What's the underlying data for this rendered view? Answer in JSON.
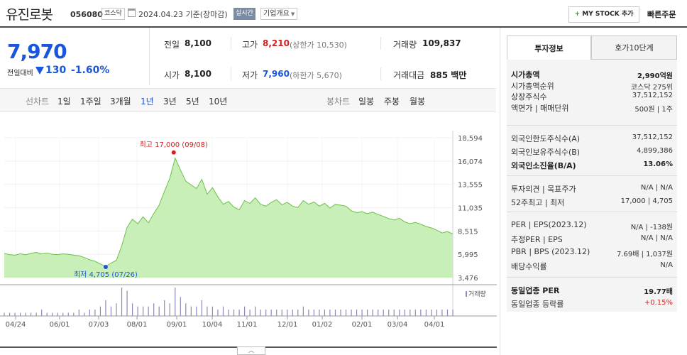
{
  "header": {
    "name": "유진로봇",
    "code": "056080",
    "market": "코스닥",
    "date": "2024.04.23 기준(장마감)",
    "live_label": "실시간",
    "info_label": "기업개요",
    "mystock_label": "MY STOCK 추가",
    "quick_order_label": "빠른주문"
  },
  "price": {
    "current": "7,970",
    "change_label": "전일대비",
    "change": "130",
    "change_rate": "-1.60%",
    "direction": "down"
  },
  "quotes": {
    "prev_label": "전일",
    "prev": "8,100",
    "high_label": "고가",
    "high": "8,210",
    "upper_limit": "(상한가 10,530)",
    "volume_label": "거래량",
    "volume": "109,837",
    "open_label": "시가",
    "open": "8,100",
    "low_label": "저가",
    "low": "7,960",
    "lower_limit": "(하한가 5,670)",
    "amount_label": "거래대금",
    "amount": "885 백만"
  },
  "line_tabs": {
    "label": "선차트",
    "items": [
      "1일",
      "1주일",
      "3개월",
      "1년",
      "3년",
      "5년",
      "10년"
    ],
    "active": "1년"
  },
  "candle_tabs": {
    "label": "봉차트",
    "items": [
      "일봉",
      "주봉",
      "월봉"
    ]
  },
  "chart_data": {
    "type": "area",
    "y_ticks": [
      "18,594",
      "16,074",
      "13,555",
      "11,035",
      "8,515",
      "5,995",
      "3,476"
    ],
    "ylim": [
      3476,
      18594
    ],
    "x_ticks": [
      "04/24",
      "06/01",
      "07/03",
      "08/01",
      "09/01",
      "10/04",
      "11/01",
      "12/01",
      "01/02",
      "02/01",
      "03/04",
      "04/01"
    ],
    "high_annotation": "최고 17,000 (09/08)",
    "low_annotation": "최저 4,705 (07/26)",
    "high_value": 17000,
    "low_value": 4705,
    "volume_legend": "거래량",
    "area_color": "#aee39e",
    "line_color": "#6cc04a",
    "price_series": [
      {
        "x": 0,
        "y": 6100
      },
      {
        "x": 1,
        "y": 5950
      },
      {
        "x": 2,
        "y": 5900
      },
      {
        "x": 3,
        "y": 6050
      },
      {
        "x": 4,
        "y": 5950
      },
      {
        "x": 5,
        "y": 6100
      },
      {
        "x": 6,
        "y": 6200
      },
      {
        "x": 7,
        "y": 6050
      },
      {
        "x": 8,
        "y": 6150
      },
      {
        "x": 9,
        "y": 6000
      },
      {
        "x": 10,
        "y": 5950
      },
      {
        "x": 11,
        "y": 6050
      },
      {
        "x": 12,
        "y": 6000
      },
      {
        "x": 13,
        "y": 5900
      },
      {
        "x": 14,
        "y": 5850
      },
      {
        "x": 15,
        "y": 5650
      },
      {
        "x": 16,
        "y": 5400
      },
      {
        "x": 17,
        "y": 5250
      },
      {
        "x": 18,
        "y": 4950
      },
      {
        "x": 19,
        "y": 4705
      },
      {
        "x": 20,
        "y": 5050
      },
      {
        "x": 21,
        "y": 5350
      },
      {
        "x": 22,
        "y": 6900
      },
      {
        "x": 23,
        "y": 8900
      },
      {
        "x": 24,
        "y": 9800
      },
      {
        "x": 25,
        "y": 9300
      },
      {
        "x": 26,
        "y": 10050
      },
      {
        "x": 27,
        "y": 9400
      },
      {
        "x": 28,
        "y": 10400
      },
      {
        "x": 29,
        "y": 11300
      },
      {
        "x": 30,
        "y": 12800
      },
      {
        "x": 31,
        "y": 14200
      },
      {
        "x": 32,
        "y": 16400
      },
      {
        "x": 33,
        "y": 15100
      },
      {
        "x": 34,
        "y": 13900
      },
      {
        "x": 35,
        "y": 13500
      },
      {
        "x": 36,
        "y": 13100
      },
      {
        "x": 37,
        "y": 14100
      },
      {
        "x": 38,
        "y": 12500
      },
      {
        "x": 39,
        "y": 13200
      },
      {
        "x": 40,
        "y": 12200
      },
      {
        "x": 41,
        "y": 11400
      },
      {
        "x": 42,
        "y": 11700
      },
      {
        "x": 43,
        "y": 11100
      },
      {
        "x": 44,
        "y": 10800
      },
      {
        "x": 45,
        "y": 11800
      },
      {
        "x": 46,
        "y": 11500
      },
      {
        "x": 47,
        "y": 12100
      },
      {
        "x": 48,
        "y": 11400
      },
      {
        "x": 49,
        "y": 11200
      },
      {
        "x": 50,
        "y": 11600
      },
      {
        "x": 51,
        "y": 11900
      },
      {
        "x": 52,
        "y": 11350
      },
      {
        "x": 53,
        "y": 11600
      },
      {
        "x": 54,
        "y": 11200
      },
      {
        "x": 55,
        "y": 11050
      },
      {
        "x": 56,
        "y": 11800
      },
      {
        "x": 57,
        "y": 11400
      },
      {
        "x": 58,
        "y": 11650
      },
      {
        "x": 59,
        "y": 11200
      },
      {
        "x": 60,
        "y": 11500
      },
      {
        "x": 61,
        "y": 11000
      },
      {
        "x": 62,
        "y": 11400
      },
      {
        "x": 63,
        "y": 11300
      },
      {
        "x": 64,
        "y": 11200
      },
      {
        "x": 65,
        "y": 10700
      },
      {
        "x": 66,
        "y": 10500
      },
      {
        "x": 67,
        "y": 10600
      },
      {
        "x": 68,
        "y": 10400
      },
      {
        "x": 69,
        "y": 10550
      },
      {
        "x": 70,
        "y": 10300
      },
      {
        "x": 71,
        "y": 10100
      },
      {
        "x": 72,
        "y": 9850
      },
      {
        "x": 73,
        "y": 9700
      },
      {
        "x": 74,
        "y": 9900
      },
      {
        "x": 75,
        "y": 9500
      },
      {
        "x": 76,
        "y": 9300
      },
      {
        "x": 77,
        "y": 9450
      },
      {
        "x": 78,
        "y": 9250
      },
      {
        "x": 79,
        "y": 9000
      },
      {
        "x": 80,
        "y": 8850
      },
      {
        "x": 81,
        "y": 8600
      },
      {
        "x": 82,
        "y": 8300
      },
      {
        "x": 83,
        "y": 8450
      },
      {
        "x": 84,
        "y": 8200
      }
    ],
    "volume_series": [
      1,
      1,
      1,
      1,
      1,
      1,
      1,
      2,
      1,
      1,
      1,
      1,
      1,
      1,
      2,
      1,
      2,
      2,
      3,
      5,
      3,
      4,
      9,
      8,
      4,
      3,
      3,
      3,
      4,
      3,
      5,
      4,
      9,
      6,
      4,
      3,
      3,
      5,
      3,
      3,
      2,
      3,
      2,
      2,
      2,
      3,
      2,
      3,
      2,
      2,
      2,
      2,
      2,
      2,
      2,
      2,
      3,
      2,
      2,
      2,
      2,
      2,
      2,
      2,
      2,
      2,
      2,
      2,
      2,
      2,
      2,
      2,
      2,
      2,
      2,
      2,
      2,
      2,
      2,
      2,
      2,
      2,
      2,
      2,
      2
    ]
  },
  "right_panel": {
    "tab_invest": "투자정보",
    "tab_hoga": "호가10단계",
    "rows1": [
      {
        "label": "시가총액",
        "value": "2,990억원",
        "bold": true
      },
      {
        "label": "시가총액순위",
        "value": "코스닥 275위"
      },
      {
        "label": "상장주식수",
        "value": "37,512,152"
      },
      {
        "label": "액면가 | 매매단위",
        "value": "500원 | 1주"
      }
    ],
    "rows2": [
      {
        "label": "외국인한도주식수(A)",
        "value": "37,512,152"
      },
      {
        "label": "외국인보유주식수(B)",
        "value": "4,899,386"
      },
      {
        "label": "외국인소진율(B/A)",
        "value": "13.06%",
        "bold": true
      }
    ],
    "rows3": [
      {
        "label": "투자의견 | 목표주가",
        "value": "N/A | N/A"
      },
      {
        "label": "52주최고 | 최저",
        "value": "17,000 | 4,705"
      }
    ],
    "rows4": [
      {
        "label": "PER | EPS(2023.12)",
        "value": "N/A | -138원"
      },
      {
        "label": "추정PER | EPS",
        "value": "N/A | N/A"
      },
      {
        "label": "PBR | BPS (2023.12)",
        "value": "7.69배 | 1,037원"
      },
      {
        "label": "배당수익률",
        "value": "N/A"
      }
    ],
    "rows5": [
      {
        "label": "동일업종 PER",
        "value": "19.77배",
        "bold": true
      },
      {
        "label": "동일업종 등락률",
        "value": "+0.15%",
        "red": true
      }
    ]
  }
}
